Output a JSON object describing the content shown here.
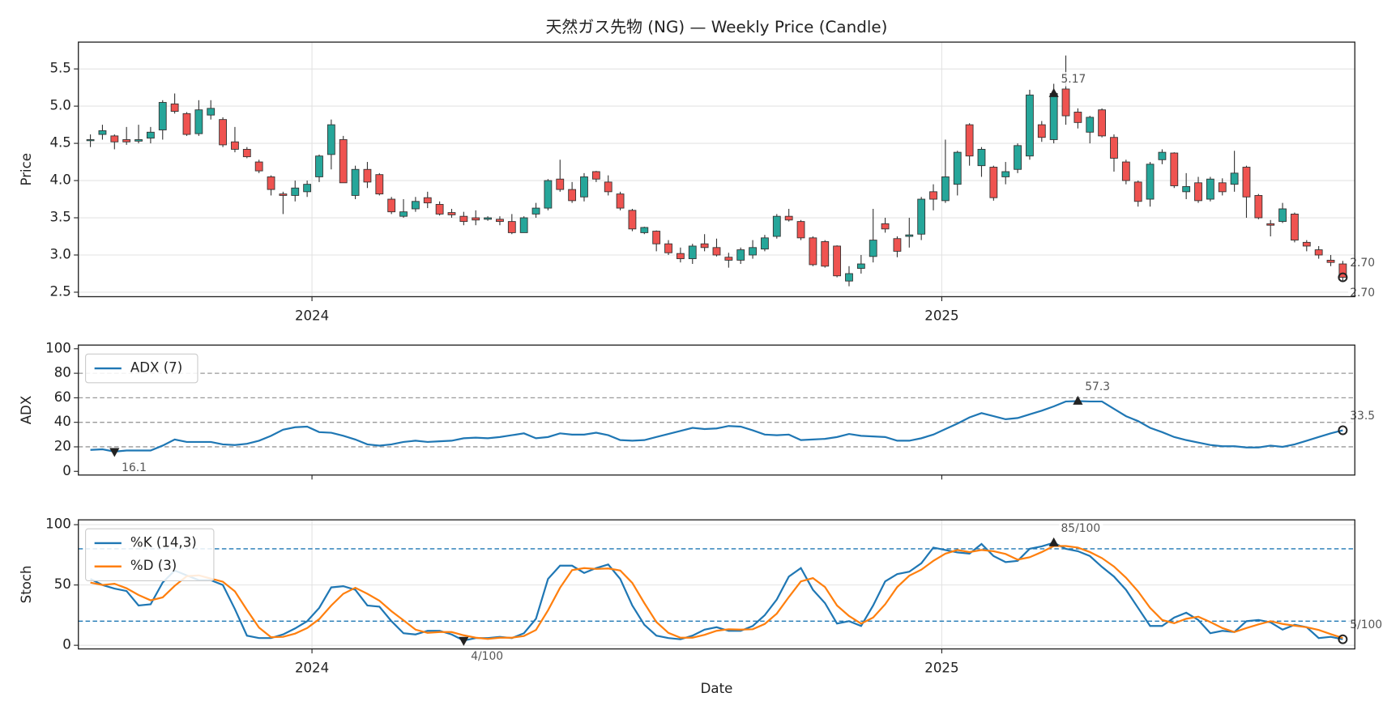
{
  "chart_data": [
    {
      "type": "candlestick",
      "title": "天然ガス先物 (NG) — Weekly Price (Candle)",
      "ylabel": "Price",
      "xlim": [
        -1,
        105
      ],
      "xticks": [
        {
          "value": 18.4,
          "label": "2024"
        },
        {
          "value": 70.7,
          "label": "2025"
        }
      ],
      "ylim": [
        2.44,
        5.86
      ],
      "yticks": [
        2.5,
        {
          "value": 3,
          "label": "3.0"
        },
        3.5,
        {
          "value": 4,
          "label": "4.0"
        },
        4.5,
        {
          "value": 5,
          "label": "5.0"
        },
        5.5
      ],
      "grid": true,
      "up_color": "#26a69a",
      "down_color": "#ef5350",
      "open": [
        4.55,
        4.62,
        4.6,
        4.55,
        4.53,
        4.57,
        4.68,
        5.03,
        4.9,
        4.63,
        4.88,
        4.82,
        4.52,
        4.42,
        4.25,
        4.05,
        3.82,
        3.8,
        3.85,
        4.05,
        4.35,
        4.55,
        3.8,
        4.15,
        4.08,
        3.75,
        3.52,
        3.62,
        3.77,
        3.68,
        3.57,
        3.52,
        3.5,
        3.48,
        3.48,
        3.45,
        3.3,
        3.55,
        3.63,
        4.02,
        3.88,
        3.78,
        4.12,
        3.98,
        3.82,
        3.6,
        3.3,
        3.32,
        3.15,
        3.02,
        2.95,
        3.15,
        3.1,
        2.97,
        2.93,
        3.0,
        3.08,
        3.25,
        3.52,
        3.45,
        3.23,
        3.18,
        3.12,
        2.65,
        2.82,
        2.98,
        3.42,
        3.22,
        3.25,
        3.28,
        3.85,
        3.73,
        3.95,
        4.75,
        4.2,
        4.18,
        4.05,
        4.15,
        4.33,
        4.75,
        4.55,
        5.23,
        4.92,
        4.65,
        4.95,
        4.58,
        4.25,
        3.98,
        3.75,
        4.28,
        4.37,
        3.85,
        3.97,
        3.75,
        3.97,
        3.95,
        4.18,
        3.8,
        3.42,
        3.45,
        3.55,
        3.17,
        3.07,
        2.93,
        2.88
      ],
      "high": [
        4.62,
        4.75,
        4.62,
        4.72,
        4.75,
        4.72,
        5.08,
        5.17,
        4.92,
        5.08,
        5.08,
        4.85,
        4.72,
        4.45,
        4.28,
        4.07,
        3.85,
        4.0,
        4.0,
        4.35,
        4.82,
        4.6,
        4.2,
        4.25,
        4.1,
        3.78,
        3.75,
        3.78,
        3.85,
        3.72,
        3.62,
        3.58,
        3.6,
        3.52,
        3.52,
        3.55,
        3.52,
        3.7,
        4.02,
        4.28,
        3.98,
        4.1,
        4.13,
        4.07,
        3.85,
        3.62,
        3.38,
        3.33,
        3.2,
        3.1,
        3.15,
        3.28,
        3.22,
        3.03,
        3.1,
        3.2,
        3.27,
        3.55,
        3.62,
        3.47,
        3.25,
        3.2,
        3.13,
        2.85,
        3.0,
        3.62,
        3.5,
        3.25,
        3.5,
        3.78,
        3.95,
        4.55,
        4.4,
        4.77,
        4.45,
        4.2,
        4.25,
        4.5,
        5.22,
        4.8,
        5.3,
        5.68,
        4.97,
        4.87,
        4.97,
        4.62,
        4.28,
        4.0,
        4.25,
        4.42,
        4.38,
        4.1,
        4.05,
        4.05,
        4.03,
        4.4,
        4.2,
        3.82,
        3.47,
        3.7,
        3.57,
        3.2,
        3.12,
        3.0,
        2.92
      ],
      "low": [
        4.45,
        4.55,
        4.42,
        4.48,
        4.5,
        4.5,
        4.55,
        4.9,
        4.6,
        4.6,
        4.82,
        4.45,
        4.38,
        4.3,
        4.1,
        3.8,
        3.55,
        3.72,
        3.78,
        3.98,
        4.15,
        3.97,
        3.75,
        3.9,
        3.8,
        3.55,
        3.5,
        3.58,
        3.63,
        3.53,
        3.5,
        3.4,
        3.4,
        3.46,
        3.4,
        3.28,
        3.3,
        3.5,
        3.6,
        3.85,
        3.7,
        3.72,
        3.98,
        3.8,
        3.6,
        3.32,
        3.28,
        3.05,
        3.0,
        2.9,
        2.88,
        3.05,
        2.98,
        2.83,
        2.88,
        2.95,
        3.05,
        3.22,
        3.45,
        3.2,
        2.85,
        2.83,
        2.7,
        2.58,
        2.75,
        2.9,
        3.3,
        2.97,
        3.1,
        3.2,
        3.6,
        3.7,
        3.8,
        4.2,
        4.05,
        3.73,
        3.95,
        4.1,
        4.28,
        4.52,
        4.5,
        4.75,
        4.7,
        4.5,
        4.58,
        4.12,
        3.95,
        3.65,
        3.65,
        4.22,
        3.9,
        3.75,
        3.7,
        3.72,
        3.8,
        3.85,
        3.5,
        3.48,
        3.25,
        3.43,
        3.17,
        3.05,
        2.95,
        2.85,
        2.65
      ],
      "close": [
        4.55,
        4.67,
        4.52,
        4.52,
        4.55,
        4.65,
        5.05,
        4.93,
        4.62,
        4.95,
        4.97,
        4.48,
        4.42,
        4.32,
        4.13,
        3.88,
        3.8,
        3.9,
        3.95,
        4.33,
        4.75,
        3.97,
        4.15,
        3.98,
        3.82,
        3.58,
        3.58,
        3.72,
        3.7,
        3.55,
        3.54,
        3.45,
        3.47,
        3.5,
        3.45,
        3.3,
        3.5,
        3.63,
        4.0,
        3.88,
        3.73,
        4.05,
        4.02,
        3.85,
        3.63,
        3.35,
        3.37,
        3.15,
        3.03,
        2.95,
        3.12,
        3.1,
        3.0,
        2.93,
        3.07,
        3.1,
        3.23,
        3.52,
        3.47,
        3.23,
        2.87,
        2.85,
        2.72,
        2.75,
        2.88,
        3.2,
        3.35,
        3.05,
        3.27,
        3.75,
        3.75,
        4.05,
        4.38,
        4.33,
        4.42,
        3.77,
        4.12,
        4.47,
        5.15,
        4.58,
        5.17,
        4.87,
        4.78,
        4.85,
        4.6,
        4.3,
        4.0,
        3.72,
        4.22,
        4.38,
        3.93,
        3.92,
        3.73,
        4.02,
        3.85,
        4.1,
        3.78,
        3.5,
        3.4,
        3.62,
        3.2,
        3.12,
        3.0,
        2.9,
        2.7
      ],
      "annotations": [
        {
          "index": 80,
          "value": 5.17,
          "text": "5.17",
          "marker": "up"
        },
        {
          "index": 104,
          "value": 2.7,
          "text": "2.70",
          "marker": "circle"
        },
        {
          "index": 104,
          "value": 2.7,
          "text": "2.70",
          "marker": null
        }
      ]
    },
    {
      "type": "line",
      "ylabel": "ADX",
      "xlim": [
        -1,
        105
      ],
      "ylim": [
        -3,
        103
      ],
      "yticks": [
        0,
        20,
        40,
        60,
        80,
        100
      ],
      "grid": false,
      "levels": [
        20,
        40,
        60,
        80
      ],
      "level_color": "#999999",
      "legend": "upper left",
      "series": [
        {
          "name": "ADX (7)",
          "color": "#1f77b4",
          "values": [
            17.5,
            18,
            16.1,
            17,
            17,
            17,
            21,
            26,
            24,
            24,
            24,
            22,
            21.5,
            22.5,
            25,
            29,
            34,
            36,
            36.5,
            32,
            31.5,
            29,
            26,
            22,
            21,
            22,
            24,
            25,
            24,
            24.5,
            25,
            27,
            27.5,
            27,
            28,
            29.5,
            31,
            27,
            28,
            31,
            30,
            30,
            31.5,
            29.5,
            25.5,
            25,
            25.5,
            28,
            30.5,
            33,
            35.5,
            34.5,
            35,
            37,
            36.5,
            33.5,
            30,
            29.5,
            30,
            25.5,
            26,
            26.5,
            28,
            30.5,
            29,
            28.5,
            28,
            25,
            25,
            27,
            30,
            34.5,
            39,
            44,
            47.5,
            45,
            42.5,
            43.5,
            46.5,
            49.5,
            53,
            57,
            57.3,
            57,
            57,
            51,
            45,
            41,
            35.5,
            32,
            28,
            25.5,
            23.5,
            21.5,
            20.5,
            20.5,
            19.5,
            19.5,
            21,
            20,
            22,
            25,
            28,
            31,
            33.5
          ]
        }
      ],
      "annotations": [
        {
          "index": 2,
          "value": 16.1,
          "text": "16.1",
          "marker": "down"
        },
        {
          "index": 82,
          "value": 57.3,
          "text": "57.3",
          "marker": "up"
        },
        {
          "index": 104,
          "value": 33.5,
          "text": "33.5",
          "marker": "circle"
        }
      ]
    },
    {
      "type": "line",
      "ylabel": "Stoch",
      "xlabel": "Date",
      "xlim": [
        -1,
        105
      ],
      "xticks": [
        {
          "value": 18.4,
          "label": "2024"
        },
        {
          "value": 70.7,
          "label": "2025"
        }
      ],
      "ylim": [
        -3,
        104
      ],
      "yticks": [
        0,
        50,
        100
      ],
      "grid": true,
      "levels": [
        20,
        80
      ],
      "level_color": "#1f77b4",
      "legend": "upper left",
      "series": [
        {
          "name": "%K (14,3)",
          "color": "#1f77b4",
          "values": [
            55,
            50,
            47,
            45,
            33,
            34,
            52,
            62,
            58,
            54,
            54,
            50,
            30,
            8,
            6,
            6,
            9,
            14,
            20,
            31,
            48,
            49,
            46,
            33,
            32,
            20,
            10,
            9,
            12,
            12,
            9,
            4,
            6,
            6,
            7,
            6,
            10,
            22,
            55,
            66,
            66,
            60,
            64,
            67,
            55,
            33,
            17,
            8,
            6,
            5,
            8,
            13,
            15,
            12,
            12,
            16,
            25,
            38,
            57,
            64,
            46,
            35,
            18,
            20,
            16,
            33,
            53,
            59,
            61,
            68,
            81,
            79,
            77,
            76,
            84,
            74,
            69,
            70,
            80,
            82,
            85,
            80,
            78,
            74,
            65,
            57,
            46,
            31,
            16,
            16,
            23,
            27,
            21,
            10,
            12,
            11,
            20,
            21,
            19,
            13,
            17,
            15,
            6,
            7,
            5
          ]
        },
        {
          "name": "%D (3)",
          "color": "#ff7f0e",
          "values": [
            52,
            50,
            51,
            47.3,
            41.7,
            37.3,
            39.7,
            49.3,
            57.3,
            58,
            55.3,
            52.7,
            44.7,
            29.3,
            14.7,
            6.7,
            7,
            9.7,
            14.3,
            21.7,
            33,
            42.7,
            47.7,
            42.7,
            37,
            28.3,
            20.7,
            13,
            10.3,
            11,
            11,
            8.3,
            6.3,
            5.3,
            6.3,
            6.3,
            7.7,
            12.7,
            29,
            47.7,
            62.3,
            64,
            63.3,
            63.7,
            62,
            51.7,
            35,
            19.3,
            10.3,
            6.3,
            6.3,
            8.7,
            12,
            13.3,
            13,
            13.3,
            17.7,
            26.3,
            40,
            53,
            55.7,
            48.3,
            33,
            24.3,
            18,
            23,
            34,
            48.3,
            57.7,
            62.7,
            70,
            76,
            79,
            77.3,
            79,
            78,
            75.7,
            71,
            73,
            77.3,
            82.3,
            82.3,
            81,
            77.3,
            72.3,
            65.3,
            56,
            44.7,
            31,
            21,
            18.3,
            22,
            23.7,
            19.3,
            14.3,
            11,
            14.3,
            17.3,
            20,
            17.7,
            16.3,
            15,
            12.7,
            9.3,
            6
          ]
        }
      ],
      "annotations": [
        {
          "index": 31,
          "value": 4,
          "text": "4/100",
          "marker": "down"
        },
        {
          "index": 80,
          "value": 85,
          "text": "85/100",
          "marker": "up"
        },
        {
          "index": 104,
          "value": 5,
          "text": "5/100",
          "marker": "circle"
        }
      ]
    }
  ]
}
